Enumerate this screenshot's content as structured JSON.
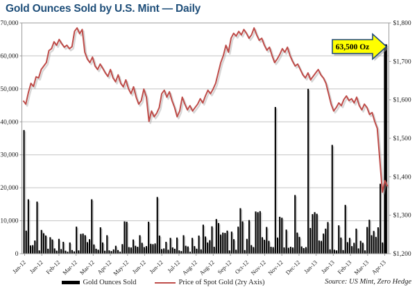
{
  "title": "Gold Ounces Sold by U.S. Mint — Daily",
  "legend": {
    "bars": "Gold Ounces Sold",
    "line": "Price of Spot Gold (2ry Axis)"
  },
  "source": "Source: US Mint, Zero Hedge",
  "annotation": {
    "label": "63,500 Oz"
  },
  "colors": {
    "title": "#1E4E79",
    "bar": "#000000",
    "bar_shadow": "#ADADAD",
    "line": "#BE4B48",
    "line_shadow": "#A6A6A6",
    "grid": "#C3C3C3",
    "frame": "#9B9B9B",
    "tick_text": "#1a1a1a",
    "annotation_fill": "#FFFF00",
    "annotation_border": "#1F497D"
  },
  "chart_data": {
    "type": "bar",
    "title": "Gold Ounces Sold by U.S. Mint — Daily",
    "grid": true,
    "legend_position": "bottom",
    "left_axis": {
      "label": "Gold Ounces Sold",
      "min": 0,
      "max": 70000,
      "step": 10000,
      "tick_labels": [
        "0",
        "10,000",
        "20,000",
        "30,000",
        "40,000",
        "50,000",
        "60,000",
        "70,000"
      ]
    },
    "right_axis": {
      "label": "Price of Spot Gold (2ry Axis)",
      "min": 1200,
      "max": 1800,
      "step": 100,
      "tick_labels": [
        "$1,200",
        "$1,300",
        "$1,400",
        "$1,500",
        "$1,600",
        "$1,700",
        "$1,800"
      ]
    },
    "x_tick_labels": [
      "Jan-12",
      "Jan-12",
      "Feb-12",
      "Mar-12",
      "Mar-12",
      "Apr-12",
      "May-12",
      "Jun-12",
      "Jun-12",
      "Jul-12",
      "Aug-12",
      "Aug-12",
      "Sep-12",
      "Oct-12",
      "Nov-12",
      "Nov-12",
      "Dec-12",
      "Jan-13",
      "Jan-13",
      "Feb-13",
      "Mar-13",
      "Apr-13"
    ],
    "annotation": {
      "text": "63,500 Oz",
      "points_to": "final bar (63,500 oz, Apr-13)"
    },
    "series": [
      {
        "name": "Gold Ounces Sold",
        "type": "bar",
        "axis": "left",
        "values": [
          37500,
          7000,
          16500,
          2500,
          2600,
          4000,
          15800,
          1000,
          7200,
          6200,
          5500,
          1500,
          5000,
          4300,
          1600,
          900,
          4500,
          1400,
          3600,
          900,
          600,
          3400,
          1100,
          700,
          8200,
          1000,
          6000,
          6100,
          5600,
          3500,
          4400,
          16500,
          2800,
          1500,
          1200,
          8000,
          3400,
          900,
          5600,
          1000,
          800,
          1300,
          2400,
          1100,
          600,
          2900,
          9800,
          9700,
          2000,
          1900,
          4300,
          2400,
          2100,
          5600,
          3300,
          2000,
          2300,
          9700,
          3000,
          2900,
          3100,
          17200,
          5500,
          1400,
          1600,
          3600,
          1200,
          4800,
          1900,
          1500,
          4900,
          1000,
          800,
          5600,
          2400,
          2200,
          600,
          4800,
          2300,
          1500,
          5500,
          1300,
          8800,
          5200,
          3400,
          4100,
          8300,
          2100,
          10500,
          9300,
          5800,
          6400,
          6300,
          7000,
          1000,
          6700,
          4400,
          1200,
          8200,
          13800,
          9800,
          1100,
          4500,
          10200,
          2600,
          2000,
          12800,
          12600,
          12900,
          5000,
          4200,
          8100,
          3900,
          2100,
          2000,
          44500,
          4900,
          11200,
          10900,
          1900,
          7300,
          1800,
          2100,
          1900,
          17800,
          6400,
          5100,
          2200,
          1700,
          2000,
          50000,
          7800,
          12000,
          12600,
          12100,
          4000,
          3900,
          6100,
          7600,
          9600,
          1300,
          33000,
          1200,
          1000,
          8600,
          4900,
          1100,
          14800,
          3500,
          4800,
          2300,
          3300,
          7600,
          1600,
          3900,
          3300,
          1000,
          8100,
          10300,
          5600,
          6900,
          5100,
          8000,
          21200,
          3400,
          63500
        ]
      },
      {
        "name": "Price of Spot Gold (2ry Axis)",
        "type": "line",
        "axis": "right",
        "values": [
          1598,
          1589,
          1619,
          1643,
          1635,
          1660,
          1657,
          1679,
          1688,
          1697,
          1728,
          1733,
          1751,
          1742,
          1757,
          1746,
          1737,
          1742,
          1733,
          1738,
          1778,
          1787,
          1772,
          1783,
          1724,
          1706,
          1697,
          1711,
          1688,
          1679,
          1693,
          1682,
          1670,
          1661,
          1679,
          1657,
          1647,
          1665,
          1643,
          1634,
          1652,
          1629,
          1616,
          1634,
          1607,
          1589,
          1598,
          1628,
          1607,
          1544,
          1571,
          1556,
          1565,
          1580,
          1616,
          1625,
          1607,
          1621,
          1598,
          1580,
          1556,
          1571,
          1607,
          1589,
          1574,
          1585,
          1571,
          1580,
          1589,
          1603,
          1592,
          1610,
          1625,
          1616,
          1628,
          1643,
          1670,
          1697,
          1715,
          1742,
          1724,
          1760,
          1773,
          1766,
          1778,
          1769,
          1783,
          1773,
          1760,
          1769,
          1787,
          1769,
          1755,
          1760,
          1742,
          1729,
          1737,
          1715,
          1697,
          1706,
          1718,
          1733,
          1724,
          1737,
          1715,
          1700,
          1688,
          1693,
          1679,
          1665,
          1657,
          1670,
          1652,
          1661,
          1670,
          1679,
          1665,
          1657,
          1643,
          1616,
          1589,
          1571,
          1580,
          1592,
          1585,
          1601,
          1610,
          1598,
          1603,
          1592,
          1607,
          1585,
          1574,
          1589,
          1580,
          1562,
          1567,
          1544,
          1526,
          1444,
          1360,
          1390,
          1375
        ]
      }
    ]
  }
}
